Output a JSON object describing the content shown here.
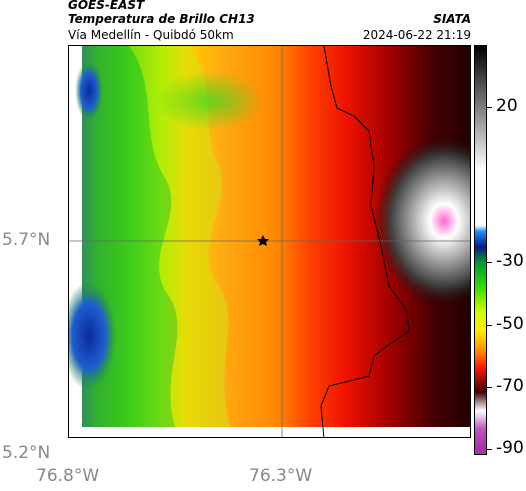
{
  "header": {
    "source": "GOES-EAST",
    "product": "Temperatura de Brillo CH13",
    "region": "Vía Medellín - Quibdó 50km",
    "org": "SIATA",
    "datetime": "2024-06-22 21:19"
  },
  "map": {
    "lat_ticks": [
      "5.7°N",
      "5.2°N"
    ],
    "lon_ticks": [
      "76.8°W",
      "76.3°W"
    ],
    "marker": "star-marker"
  },
  "colorbar": {
    "ticks": [
      "20",
      "-30",
      "-50",
      "-70",
      "-90"
    ],
    "tick_values": [
      20,
      -30,
      -50,
      -70,
      -90
    ],
    "scale": [
      {
        "value": 40,
        "color": "#000000"
      },
      {
        "value": 0,
        "color": "#ffffff"
      },
      {
        "value": -18,
        "color": "#ffffff"
      },
      {
        "value": -20,
        "color": "#1e90ff"
      },
      {
        "value": -25,
        "color": "#0a1a8a"
      },
      {
        "value": -30,
        "color": "#009933"
      },
      {
        "value": -38,
        "color": "#33dd00"
      },
      {
        "value": -46,
        "color": "#ccff00"
      },
      {
        "value": -52,
        "color": "#ffee00"
      },
      {
        "value": -58,
        "color": "#ff9900"
      },
      {
        "value": -64,
        "color": "#ff1a00"
      },
      {
        "value": -72,
        "color": "#400000"
      },
      {
        "value": -78,
        "color": "#ffffff"
      },
      {
        "value": -84,
        "color": "#bb55bb"
      },
      {
        "value": -90,
        "color": "#aa33aa"
      }
    ]
  }
}
